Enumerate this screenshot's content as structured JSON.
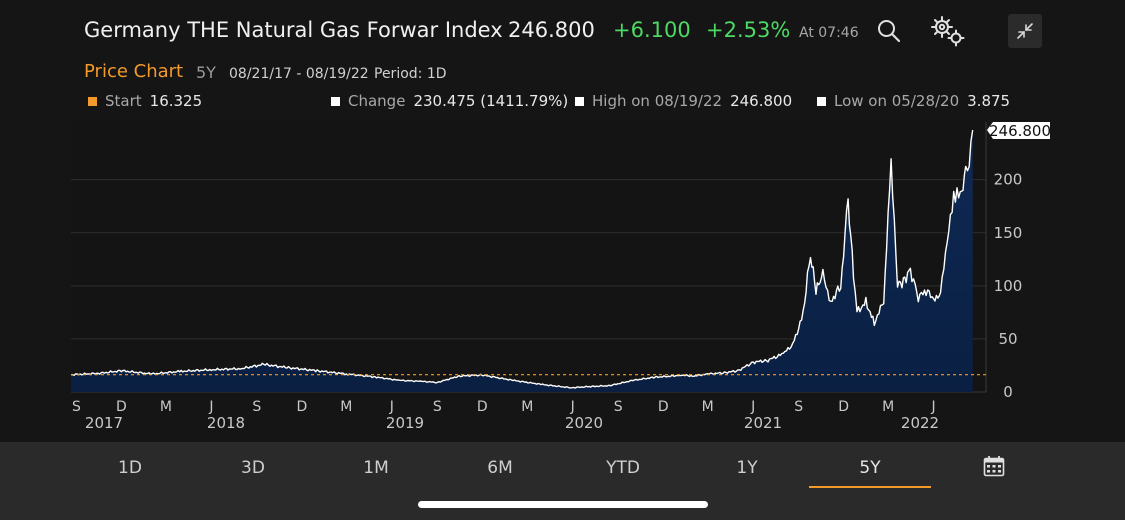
{
  "header": {
    "title": "Germany THE Natural Gas Forwar Index",
    "price": "246.800",
    "change": "+6.100",
    "change_pct": "+2.53%",
    "time": "At 07:46",
    "icons": [
      "search-icon",
      "settings-gears-icon",
      "collapse-icon"
    ]
  },
  "subheader": {
    "label": "Price Chart",
    "range": "5Y",
    "dates": "08/21/17 - 08/19/22",
    "period": "Period: 1D"
  },
  "stats": {
    "start_label": "Start",
    "start_value": "16.325",
    "change_label": "Change",
    "change_value": "230.475 (1411.79%)",
    "high_label": "High on 08/19/22",
    "high_value": "246.800",
    "low_label": "Low on 05/28/20",
    "low_value": "3.875"
  },
  "colors": {
    "accent": "#f39a2b",
    "positive": "#4cd964",
    "line": "#ffffff",
    "area_top": "#0f2a55",
    "area_bottom": "#0a1f42"
  },
  "chart_data": {
    "type": "area",
    "ylim": [
      0,
      246.8
    ],
    "yticks": [
      0,
      50,
      100,
      150,
      200
    ],
    "baseline": 16.325,
    "last_label": "246.800",
    "x_month_labels": [
      "S",
      "D",
      "M",
      "J",
      "S",
      "D",
      "M",
      "J",
      "S",
      "D",
      "M",
      "J",
      "S",
      "D",
      "M",
      "J",
      "S",
      "D",
      "M",
      "J"
    ],
    "x_year_labels": [
      "2017",
      "2018",
      "2019",
      "2020",
      "2021",
      "2022"
    ],
    "series": [
      {
        "x": [
          "2017-08-21",
          "2017-10-15",
          "2017-12-01",
          "2018-02-01",
          "2018-04-01",
          "2018-06-01",
          "2018-08-01",
          "2018-09-15",
          "2018-11-01",
          "2019-01-01",
          "2019-03-01",
          "2019-05-01",
          "2019-06-15",
          "2019-08-01",
          "2019-09-01",
          "2019-10-15",
          "2019-12-01",
          "2020-02-01",
          "2020-04-01",
          "2020-05-28",
          "2020-07-01",
          "2020-08-15",
          "2020-10-01",
          "2020-11-15",
          "2020-12-20",
          "2021-01-05",
          "2021-02-01",
          "2021-03-01",
          "2021-04-01",
          "2021-05-01",
          "2021-06-01",
          "2021-07-01",
          "2021-08-01",
          "2021-08-20",
          "2021-09-01",
          "2021-09-10",
          "2021-09-25",
          "2021-10-06",
          "2021-10-20",
          "2021-11-05",
          "2021-11-25",
          "2021-12-10",
          "2021-12-21",
          "2021-12-28",
          "2022-01-15",
          "2022-02-01",
          "2022-02-20",
          "2022-03-07",
          "2022-03-20",
          "2022-04-01",
          "2022-04-15",
          "2022-05-01",
          "2022-05-20",
          "2022-06-01",
          "2022-06-15",
          "2022-06-25",
          "2022-07-05",
          "2022-07-15",
          "2022-07-25",
          "2022-08-05",
          "2022-08-12",
          "2022-08-19"
        ],
        "y": [
          16.3,
          17.5,
          20,
          17,
          19.5,
          21,
          22,
          26,
          23,
          20,
          17,
          14,
          11,
          10,
          9,
          15,
          16,
          11,
          7,
          4,
          5,
          6,
          11,
          14,
          15,
          16,
          15,
          17,
          18,
          20,
          28,
          30,
          36,
          45,
          60,
          75,
          130,
          95,
          110,
          85,
          100,
          180,
          110,
          75,
          85,
          65,
          85,
          215,
          100,
          105,
          115,
          90,
          95,
          85,
          95,
          130,
          170,
          185,
          180,
          210,
          220,
          246.8
        ]
      }
    ]
  },
  "tabs": [
    "1D",
    "3D",
    "1M",
    "6M",
    "YTD",
    "1Y",
    "5Y"
  ],
  "active_tab": "5Y"
}
